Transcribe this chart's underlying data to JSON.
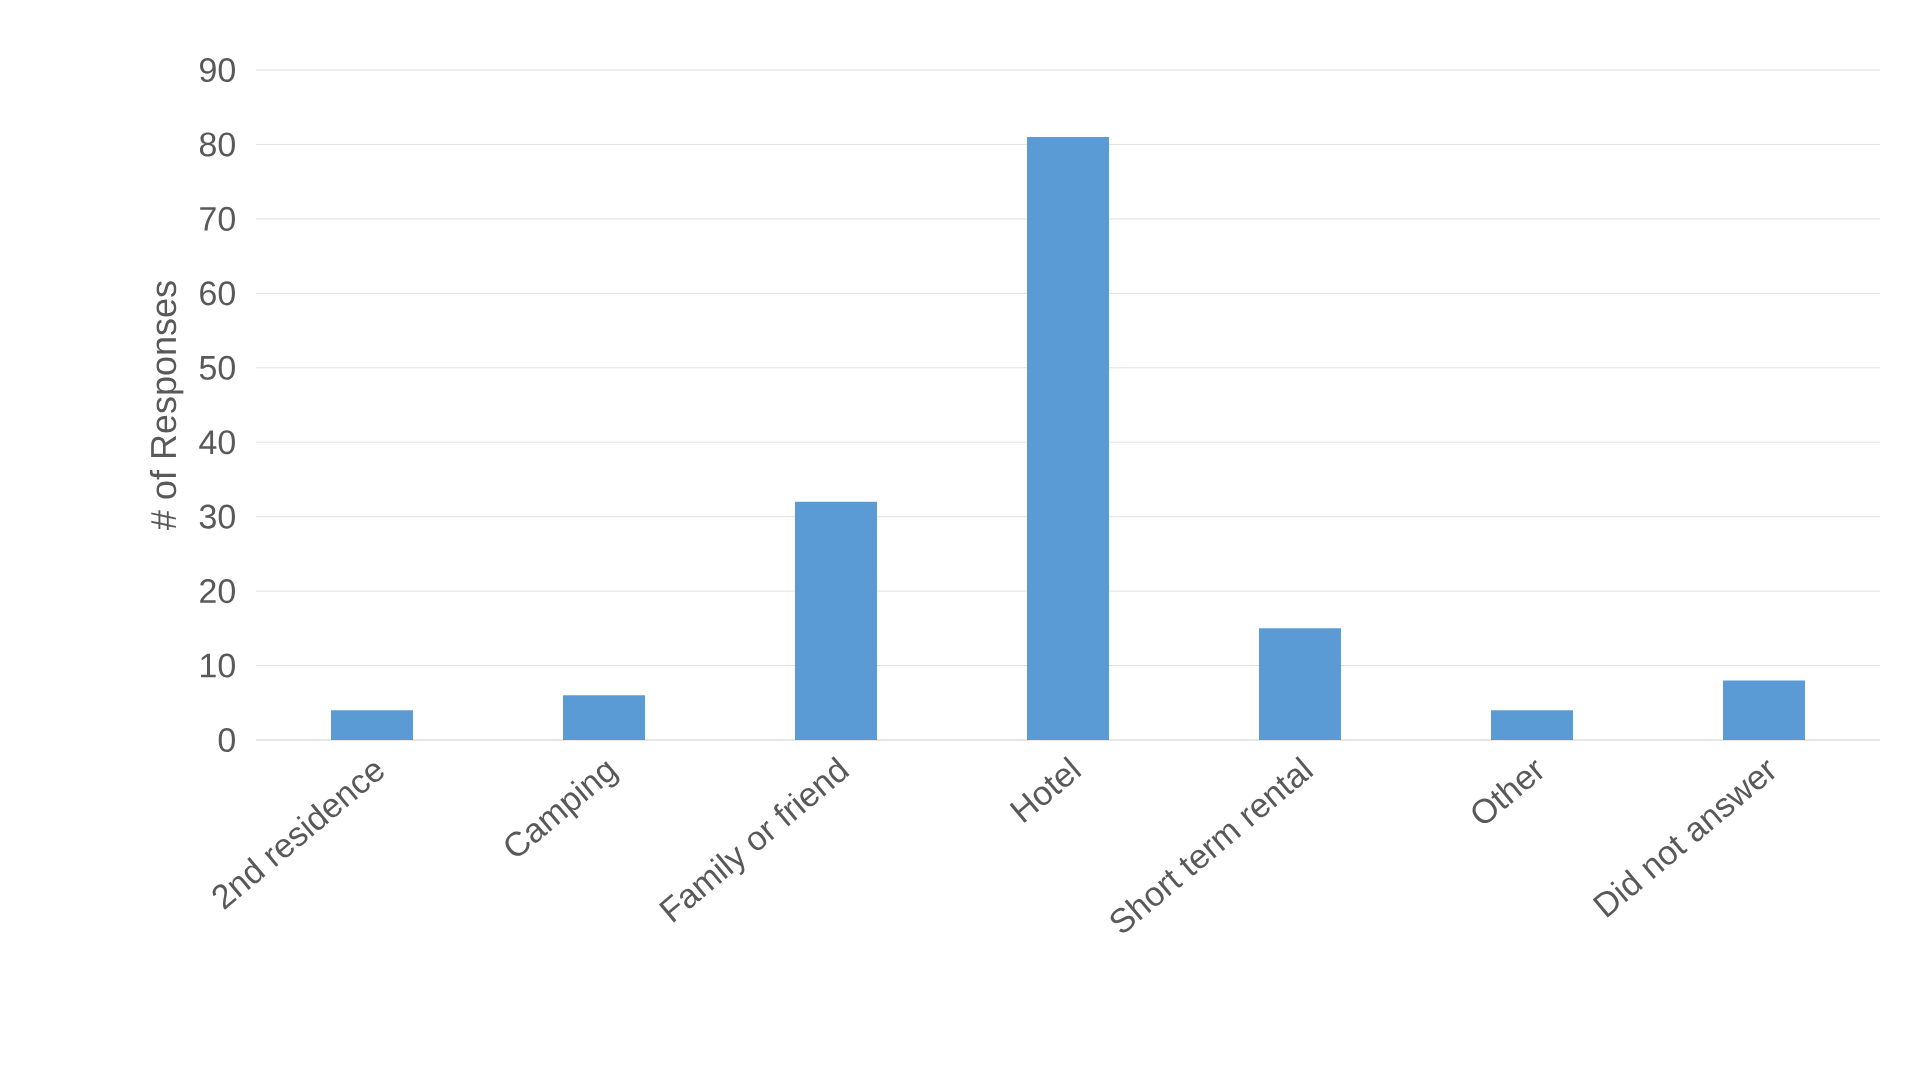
{
  "chart_data": {
    "type": "bar",
    "ylabel": "# of Responses",
    "categories": [
      "2nd residence",
      "Camping",
      "Family or friend",
      "Hotel",
      "Short term rental",
      "Other",
      "Did not answer"
    ],
    "values": [
      4,
      6,
      32,
      81,
      15,
      4,
      8
    ],
    "color": "#5b9bd5",
    "ylim": [
      0,
      90
    ],
    "yticks": [
      0,
      10,
      20,
      30,
      40,
      50,
      60,
      70,
      80,
      90
    ],
    "grid": "y"
  }
}
